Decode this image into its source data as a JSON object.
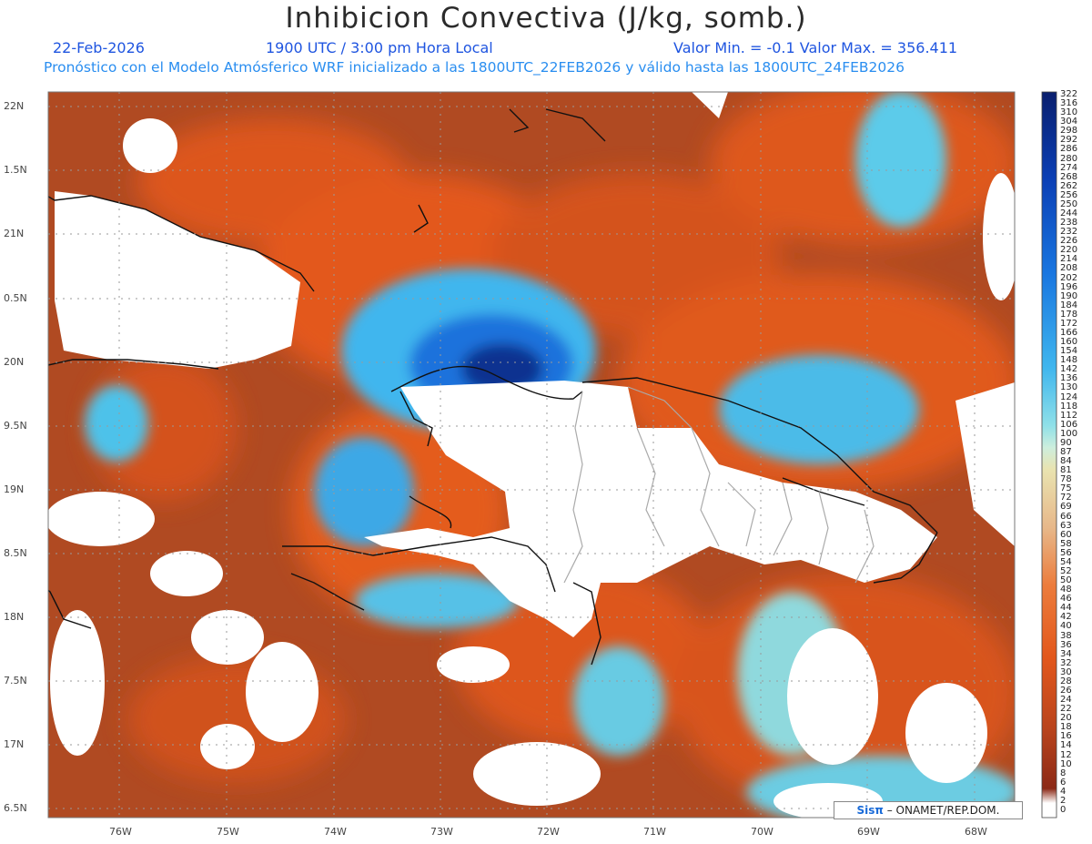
{
  "header": {
    "title": "Inhibicion Convectiva (J/kg, somb.)",
    "date": "22-Feb-2026",
    "time": "1900 UTC / 3:00 pm Hora Local",
    "minmax": "Valor Min. = -0.1  Valor Max. = 356.411",
    "forecast": "Pronóstico con el Modelo Atmósferico WRF inicializado a las 1800UTC_22FEB2026 y válido hasta las  1800UTC_24FEB2026"
  },
  "axes": {
    "lat_labels": [
      "22N",
      "1.5N",
      "21N",
      "0.5N",
      "20N",
      "9.5N",
      "19N",
      "8.5N",
      "18N",
      "7.5N",
      "17N",
      "6.5N"
    ],
    "lon_labels": [
      "76W",
      "75W",
      "74W",
      "73W",
      "72W",
      "71W",
      "70W",
      "69W",
      "68W"
    ]
  },
  "colorbar": {
    "labels": [
      "322",
      "316",
      "310",
      "304",
      "298",
      "292",
      "286",
      "280",
      "274",
      "268",
      "262",
      "256",
      "250",
      "244",
      "238",
      "232",
      "226",
      "220",
      "214",
      "208",
      "202",
      "196",
      "190",
      "184",
      "178",
      "172",
      "166",
      "160",
      "154",
      "148",
      "142",
      "136",
      "130",
      "124",
      "118",
      "112",
      "106",
      "100",
      "90",
      "87",
      "84",
      "81",
      "78",
      "75",
      "72",
      "69",
      "66",
      "63",
      "60",
      "58",
      "56",
      "54",
      "52",
      "50",
      "48",
      "46",
      "44",
      "42",
      "40",
      "38",
      "36",
      "34",
      "32",
      "30",
      "28",
      "26",
      "24",
      "22",
      "20",
      "18",
      "16",
      "14",
      "12",
      "10",
      "8",
      "6",
      "4",
      "2",
      "0"
    ]
  },
  "credit": {
    "sis": "Sisπ",
    "text": " – ONAMET/REP.DOM."
  },
  "colors": {
    "title": "#2b2b2b",
    "header_blue": "#1f55e0",
    "forecast_blue": "#2a8ef0"
  }
}
